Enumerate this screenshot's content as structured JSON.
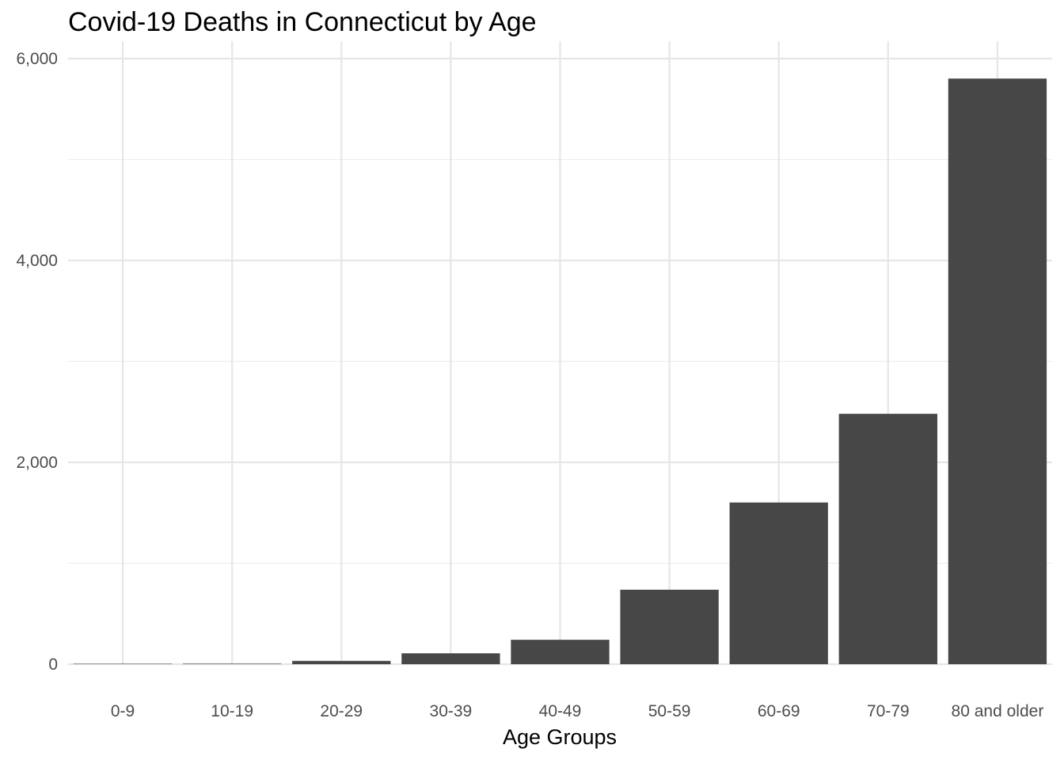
{
  "chart_data": {
    "type": "bar",
    "title": "Covid-19 Deaths in Connecticut by Age",
    "xlabel": "Age Groups",
    "ylabel": "",
    "categories": [
      "0-9",
      "10-19",
      "20-29",
      "30-39",
      "40-49",
      "50-59",
      "60-69",
      "70-79",
      "80 and older"
    ],
    "values": [
      4,
      5,
      33,
      108,
      242,
      738,
      1602,
      2481,
      5802
    ],
    "ylim": [
      0,
      6000
    ],
    "yticks": [
      0,
      2000,
      4000,
      6000
    ],
    "ytick_labels": [
      "0",
      "2,000",
      "4,000",
      "6,000"
    ],
    "bar_color": "#474747",
    "grid": true,
    "legend": "none"
  }
}
